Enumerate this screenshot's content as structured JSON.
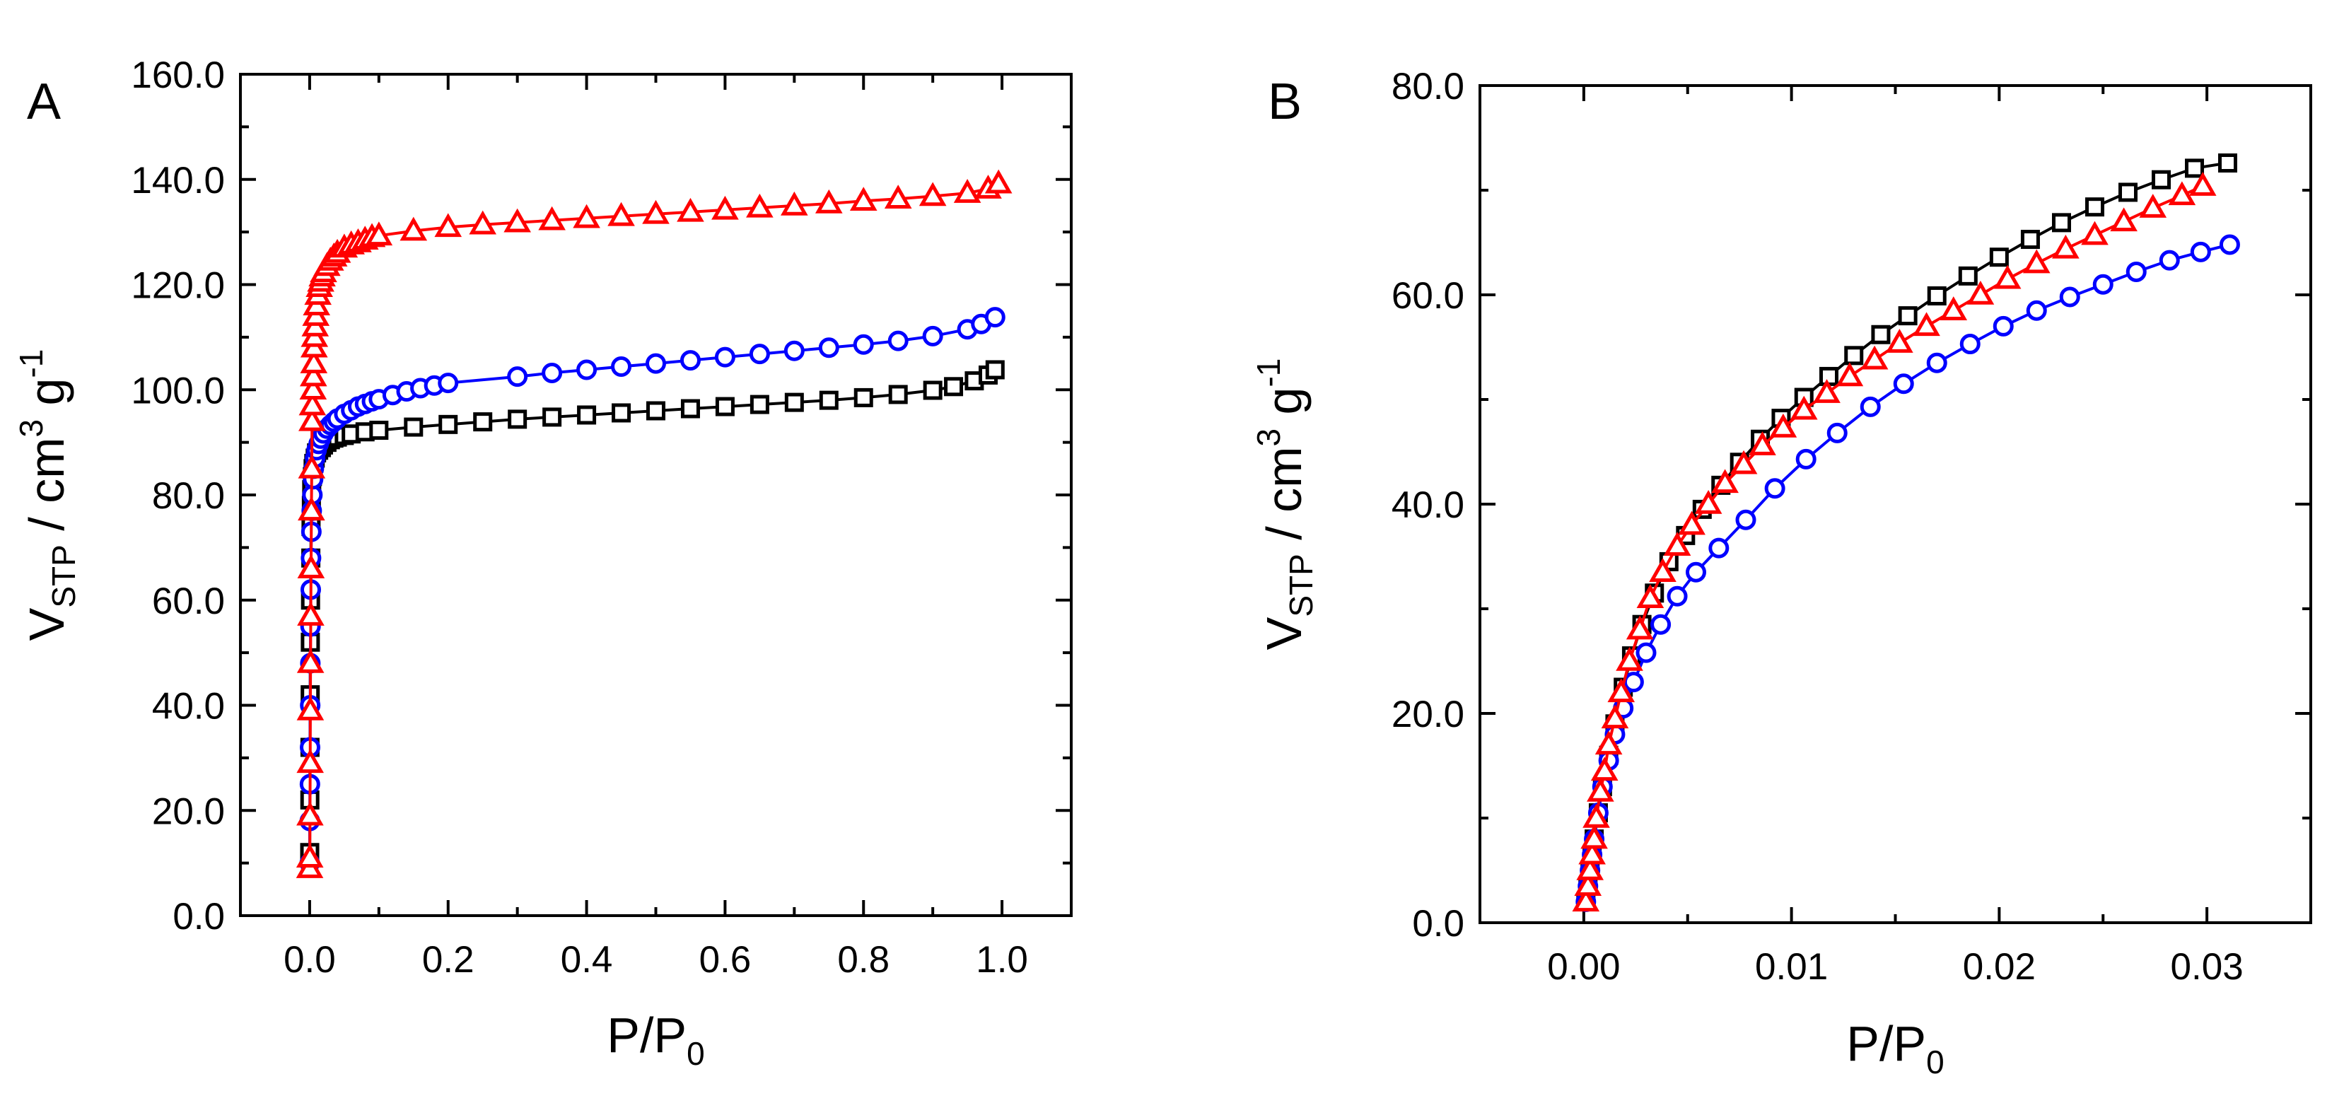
{
  "chart_data": [
    {
      "type": "scatter",
      "panel_label": "A",
      "xlabel": {
        "main": "P/P",
        "sub": "0"
      },
      "ylabel": {
        "main": "V",
        "sub": "STP",
        "rest": " / cm",
        "sup1": "3",
        "rest2": " g",
        "sup2": "-1"
      },
      "xlim": [
        -0.1,
        1.1
      ],
      "ylim": [
        0,
        160
      ],
      "xticks": [
        {
          "value": 0.0,
          "label": "0.0"
        },
        {
          "value": 0.2,
          "label": "0.2"
        },
        {
          "value": 0.4,
          "label": "0.4"
        },
        {
          "value": 0.6,
          "label": "0.6"
        },
        {
          "value": 0.8,
          "label": "0.8"
        },
        {
          "value": 1.0,
          "label": "1.0"
        }
      ],
      "yticks": [
        {
          "value": 0,
          "label": "0.0"
        },
        {
          "value": 20,
          "label": "20.0"
        },
        {
          "value": 40,
          "label": "40.0"
        },
        {
          "value": 60,
          "label": "60.0"
        },
        {
          "value": 80,
          "label": "80.0"
        },
        {
          "value": 100,
          "label": "100.0"
        },
        {
          "value": 120,
          "label": "120.0"
        },
        {
          "value": 140,
          "label": "140.0"
        },
        {
          "value": 160,
          "label": "160.0"
        }
      ],
      "series": [
        {
          "name": "black-squares",
          "color": "#000000",
          "marker": "square",
          "x": [
            0.0001,
            0.0003,
            0.0005,
            0.0008,
            0.001,
            0.0013,
            0.0017,
            0.002,
            0.0025,
            0.003,
            0.004,
            0.005,
            0.006,
            0.008,
            0.01,
            0.013,
            0.017,
            0.02,
            0.025,
            0.03,
            0.035,
            0.04,
            0.05,
            0.06,
            0.08,
            0.1,
            0.15,
            0.2,
            0.25,
            0.3,
            0.35,
            0.4,
            0.45,
            0.5,
            0.55,
            0.6,
            0.65,
            0.7,
            0.75,
            0.8,
            0.85,
            0.9,
            0.93,
            0.96,
            0.98,
            0.99
          ],
          "y": [
            12,
            22,
            32,
            42,
            52,
            60,
            68,
            74,
            78,
            81,
            83.5,
            85,
            86,
            87,
            88,
            88.5,
            89,
            89.5,
            90,
            90.5,
            90.8,
            91,
            91.3,
            91.6,
            92,
            92.3,
            92.9,
            93.4,
            93.9,
            94.4,
            94.8,
            95.2,
            95.6,
            96,
            96.4,
            96.8,
            97.2,
            97.6,
            98,
            98.5,
            99.1,
            99.9,
            100.6,
            101.7,
            102.8,
            103.8
          ]
        },
        {
          "name": "blue-circles",
          "color": "#0000ff",
          "marker": "circle",
          "x": [
            0.0001,
            0.0002,
            0.0004,
            0.0006,
            0.0008,
            0.001,
            0.0013,
            0.0016,
            0.002,
            0.0025,
            0.003,
            0.004,
            0.005,
            0.006,
            0.008,
            0.01,
            0.013,
            0.016,
            0.02,
            0.025,
            0.03,
            0.035,
            0.04,
            0.05,
            0.06,
            0.07,
            0.08,
            0.09,
            0.1,
            0.12,
            0.14,
            0.16,
            0.18,
            0.2,
            0.3,
            0.35,
            0.4,
            0.45,
            0.5,
            0.55,
            0.6,
            0.65,
            0.7,
            0.75,
            0.8,
            0.85,
            0.9,
            0.95,
            0.97,
            0.99
          ],
          "y": [
            10,
            18,
            25,
            32,
            40,
            48,
            55,
            62,
            68,
            73,
            77,
            80,
            83,
            85,
            87,
            88.5,
            89.7,
            90.7,
            91.7,
            92.6,
            93.3,
            93.9,
            94.5,
            95.4,
            96.1,
            96.8,
            97.3,
            97.8,
            98.2,
            99,
            99.7,
            100.3,
            100.8,
            101.3,
            102.5,
            103.2,
            103.8,
            104.4,
            105,
            105.6,
            106.2,
            106.8,
            107.4,
            108,
            108.6,
            109.3,
            110.2,
            111.5,
            112.5,
            113.8
          ]
        },
        {
          "name": "red-triangles",
          "color": "#ff0000",
          "marker": "triangle",
          "x": [
            0.0001,
            0.0003,
            0.0005,
            0.0008,
            0.001,
            0.0013,
            0.0016,
            0.002,
            0.0025,
            0.003,
            0.0035,
            0.004,
            0.005,
            0.0055,
            0.006,
            0.0065,
            0.007,
            0.008,
            0.009,
            0.01,
            0.012,
            0.014,
            0.016,
            0.018,
            0.02,
            0.025,
            0.03,
            0.035,
            0.04,
            0.05,
            0.06,
            0.07,
            0.08,
            0.09,
            0.1,
            0.15,
            0.2,
            0.25,
            0.3,
            0.35,
            0.4,
            0.45,
            0.5,
            0.55,
            0.6,
            0.65,
            0.7,
            0.75,
            0.8,
            0.85,
            0.9,
            0.95,
            0.98,
            0.995
          ],
          "y": [
            9,
            11,
            19,
            29,
            39,
            48,
            57,
            66,
            77,
            85,
            94,
            97,
            100,
            102.5,
            105,
            108,
            110,
            112,
            114,
            116,
            118,
            119.5,
            120.5,
            121.5,
            122.3,
            123.5,
            124.5,
            125.3,
            126,
            127,
            127.6,
            128,
            128.5,
            129,
            129.3,
            130.2,
            130.9,
            131.4,
            131.8,
            132.2,
            132.6,
            133,
            133.4,
            133.8,
            134.2,
            134.6,
            135,
            135.4,
            135.9,
            136.3,
            136.8,
            137.4,
            138.2,
            139.2
          ]
        }
      ]
    },
    {
      "type": "scatter",
      "panel_label": "B",
      "xlabel": {
        "main": "P/P",
        "sub": "0"
      },
      "ylabel": {
        "main": "V",
        "sub": "STP",
        "rest": " / cm",
        "sup1": "3",
        "rest2": " g",
        "sup2": "-1"
      },
      "xlim": [
        -0.005,
        0.035
      ],
      "ylim": [
        0,
        80
      ],
      "xticks": [
        {
          "value": 0.0,
          "label": "0.00"
        },
        {
          "value": 0.01,
          "label": "0.01"
        },
        {
          "value": 0.02,
          "label": "0.02"
        },
        {
          "value": 0.03,
          "label": "0.03"
        }
      ],
      "yticks": [
        {
          "value": 0,
          "label": "0.0"
        },
        {
          "value": 20,
          "label": "20.0"
        },
        {
          "value": 40,
          "label": "40.0"
        },
        {
          "value": 60,
          "label": "60.0"
        },
        {
          "value": 80,
          "label": "80.0"
        }
      ],
      "series": [
        {
          "name": "black-squares",
          "color": "#000000",
          "marker": "square",
          "x": [
            0.0001,
            0.0002,
            0.0003,
            0.0004,
            0.0005,
            0.0007,
            0.0009,
            0.0012,
            0.0015,
            0.0019,
            0.0023,
            0.0028,
            0.0034,
            0.0041,
            0.0049,
            0.0057,
            0.0066,
            0.0075,
            0.0085,
            0.0095,
            0.0106,
            0.0118,
            0.013,
            0.0143,
            0.0156,
            0.017,
            0.0185,
            0.02,
            0.0215,
            0.023,
            0.0246,
            0.0262,
            0.0278,
            0.0294,
            0.031
          ],
          "y": [
            2,
            3.5,
            5,
            6.5,
            8,
            10.5,
            13,
            16,
            19,
            22.5,
            25.5,
            28.5,
            31.5,
            34.5,
            37,
            39.5,
            41.8,
            44,
            46.2,
            48.2,
            50.2,
            52.2,
            54.2,
            56.2,
            58,
            59.9,
            61.8,
            63.6,
            65.3,
            66.9,
            68.4,
            69.8,
            71,
            72.1,
            72.6
          ]
        },
        {
          "name": "blue-circles",
          "color": "#0000ff",
          "marker": "circle",
          "x": [
            0.0001,
            0.0002,
            0.0003,
            0.0004,
            0.0005,
            0.0007,
            0.0009,
            0.0012,
            0.0015,
            0.0019,
            0.0024,
            0.003,
            0.0037,
            0.0045,
            0.0054,
            0.0065,
            0.0078,
            0.0092,
            0.0107,
            0.0122,
            0.0138,
            0.0154,
            0.017,
            0.0186,
            0.0202,
            0.0218,
            0.0234,
            0.025,
            0.0266,
            0.0282,
            0.0297,
            0.0311
          ],
          "y": [
            2,
            3.5,
            5,
            6.5,
            8,
            10.5,
            13,
            15.5,
            18,
            20.5,
            23,
            25.8,
            28.5,
            31.2,
            33.5,
            35.8,
            38.5,
            41.5,
            44.3,
            46.8,
            49.3,
            51.5,
            53.5,
            55.3,
            57,
            58.5,
            59.8,
            61,
            62.2,
            63.3,
            64.1,
            64.8
          ]
        },
        {
          "name": "red-triangles",
          "color": "#ff0000",
          "marker": "triangle",
          "x": [
            0.0001,
            0.0002,
            0.0003,
            0.0004,
            0.0005,
            0.0006,
            0.0008,
            0.001,
            0.0012,
            0.0015,
            0.0018,
            0.0022,
            0.0027,
            0.0032,
            0.0038,
            0.0045,
            0.0052,
            0.006,
            0.0068,
            0.0077,
            0.0086,
            0.0096,
            0.0106,
            0.0117,
            0.0128,
            0.014,
            0.0152,
            0.0165,
            0.0178,
            0.0191,
            0.0204,
            0.0218,
            0.0232,
            0.0246,
            0.026,
            0.0274,
            0.0288,
            0.0298
          ],
          "y": [
            2,
            3.5,
            5,
            6.5,
            8,
            10,
            12.5,
            14.5,
            17,
            19.5,
            22,
            25,
            28,
            31,
            33.5,
            36,
            38,
            40,
            42,
            43.8,
            45.6,
            47.3,
            49,
            50.6,
            52.2,
            53.8,
            55.4,
            57,
            58.5,
            60,
            61.5,
            63,
            64.4,
            65.7,
            67,
            68.3,
            69.5,
            70.4
          ]
        }
      ]
    }
  ]
}
